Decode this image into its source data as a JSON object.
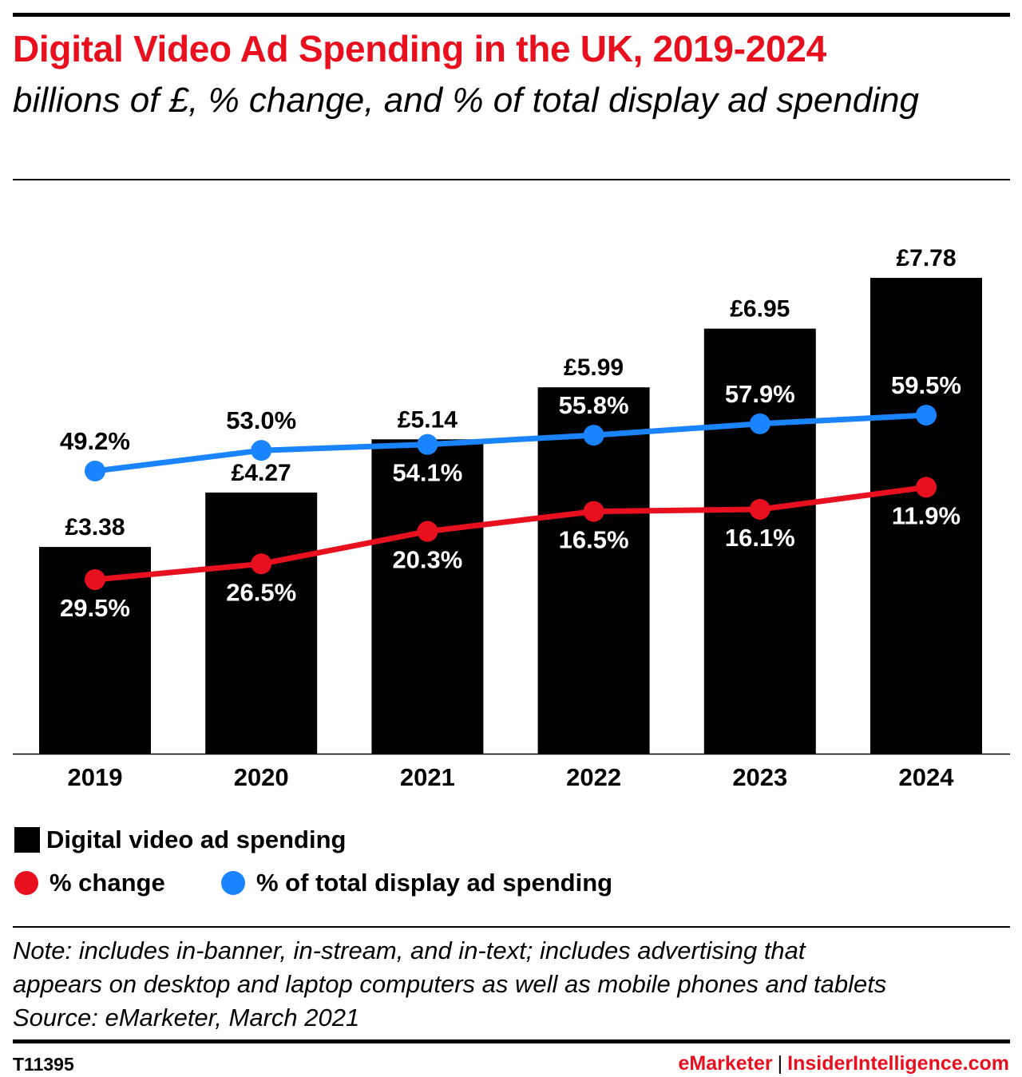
{
  "title": "Digital Video Ad Spending in the UK, 2019-2024",
  "subtitle": "billions of £, % change, and % of total display ad spending",
  "chart_data": {
    "type": "bar",
    "categories": [
      "2019",
      "2020",
      "2021",
      "2022",
      "2023",
      "2024"
    ],
    "series": [
      {
        "name": "Digital video ad spending",
        "type": "bar",
        "values": [
          3.38,
          4.27,
          5.14,
          5.99,
          6.95,
          7.78
        ],
        "labels": [
          "£3.38",
          "£4.27",
          "£5.14",
          "£5.99",
          "£6.95",
          "£7.78"
        ],
        "color": "#000000"
      },
      {
        "name": "% change",
        "type": "line",
        "values": [
          29.5,
          26.5,
          20.3,
          16.5,
          16.1,
          11.9
        ],
        "labels": [
          "29.5%",
          "26.5%",
          "20.3%",
          "16.5%",
          "16.1%",
          "11.9%"
        ],
        "color": "#e8101e"
      },
      {
        "name": "% of total display ad spending",
        "type": "line",
        "values": [
          49.2,
          53.0,
          54.1,
          55.8,
          57.9,
          59.5
        ],
        "labels": [
          "49.2%",
          "53.0%",
          "54.1%",
          "55.8%",
          "57.9%",
          "59.5%"
        ],
        "color": "#1a84ff"
      }
    ],
    "xlabel": "",
    "ylabel": "",
    "ylim": [
      0,
      8.5
    ],
    "grid": false,
    "legend": "bottom-left"
  },
  "legend": {
    "bar": "Digital video ad spending",
    "red": "% change",
    "blue": "% of total display ad spending"
  },
  "note": {
    "line1": "Note: includes in-banner, in-stream, and in-text; includes advertising that",
    "line2": "appears on desktop and laptop computers as well as mobile phones and tablets",
    "source": "Source: eMarketer, March 2021"
  },
  "footer": {
    "id": "T11395",
    "brand1": "eMarketer",
    "separator": "|",
    "brand2": "InsiderIntelligence.com"
  }
}
